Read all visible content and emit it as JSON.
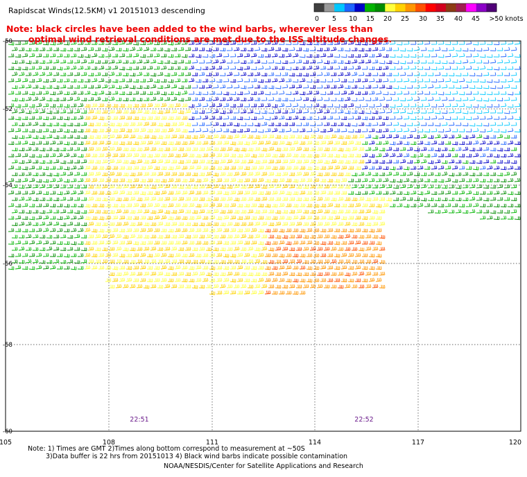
{
  "title": "Rapidscat Winds(12.5KM) v1 20151013 descending",
  "note": {
    "line1": "Note: black circles have been added to the wind barbs, wherever less than",
    "line2": "optimal wind retrieval conditions are met due to the ISS altitude changes."
  },
  "legend": {
    "labels": [
      "0",
      "5",
      "10",
      "15",
      "20",
      "25",
      "30",
      "35",
      "40",
      "45",
      ">50 knots"
    ],
    "colors": [
      "#404040",
      "#9a9a9a",
      "#00c8ff",
      "#1e64ff",
      "#0000c8",
      "#00b400",
      "#008c00",
      "#ffff3c",
      "#ffd200",
      "#ff9600",
      "#ff5000",
      "#ff0000",
      "#d2001e",
      "#8c3c14",
      "#a01e50",
      "#ff00ff",
      "#8c00c8",
      "#500078"
    ]
  },
  "map": {
    "lat_labels": [
      "-50",
      "-52",
      "-54",
      "-56",
      "-58",
      "-60"
    ],
    "lon_labels": [
      "105",
      "108",
      "111",
      "114",
      "117",
      "120"
    ],
    "times": [
      "22:51",
      "22:52"
    ]
  },
  "footnote": {
    "line1": "Note: 1) Times are GMT 2)Times along bottom correspond to measurement at ~50S",
    "line2": "3)Data buffer is 22 hrs from 20151013 4) Black wind barbs indicate possible contamination"
  },
  "credit": "NOAA/NESDIS/Center for Satellite Applications and Research"
}
